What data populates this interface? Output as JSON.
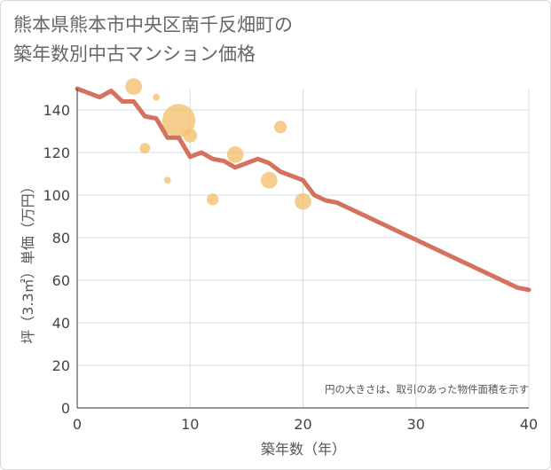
{
  "chart_data": {
    "type": "scatter",
    "title": "熊本県熊本市中央区南千反畑町の\n築年数別中古マンション価格",
    "xlabel": "築年数（年）",
    "ylabel": "坪（3.3㎡）単価（万円）",
    "note": "円の大きさは、取引のあった物件面積を示す",
    "xlim": [
      0,
      40
    ],
    "ylim": [
      0,
      150
    ],
    "xticks": [
      0,
      10,
      20,
      30,
      40
    ],
    "yticks": [
      0,
      20,
      40,
      60,
      80,
      100,
      120,
      140
    ],
    "grid": true,
    "colors": {
      "line": "#d4725f",
      "bubble": "#f3c271"
    },
    "series": [
      {
        "name": "transactions",
        "kind": "bubble",
        "points": [
          {
            "x": 5,
            "y": 151,
            "size": 3.5
          },
          {
            "x": 7,
            "y": 146,
            "size": 0.6
          },
          {
            "x": 6,
            "y": 122,
            "size": 1.4
          },
          {
            "x": 8,
            "y": 107,
            "size": 0.6
          },
          {
            "x": 9,
            "y": 135,
            "size": 14
          },
          {
            "x": 10,
            "y": 128,
            "size": 2.5
          },
          {
            "x": 12,
            "y": 98,
            "size": 1.8
          },
          {
            "x": 14,
            "y": 119,
            "size": 3.5
          },
          {
            "x": 17,
            "y": 107,
            "size": 3.5
          },
          {
            "x": 18,
            "y": 132,
            "size": 2
          },
          {
            "x": 20,
            "y": 97,
            "size": 3.5
          }
        ]
      },
      {
        "name": "trend",
        "kind": "line",
        "x": [
          0,
          1,
          2,
          3,
          4,
          5,
          6,
          7,
          8,
          9,
          10,
          11,
          12,
          13,
          14,
          15,
          16,
          17,
          18,
          19,
          20,
          21,
          22,
          23,
          24,
          25,
          26,
          27,
          28,
          29,
          30,
          31,
          32,
          33,
          34,
          35,
          36,
          37,
          38,
          39,
          40
        ],
        "y": [
          150,
          148,
          146,
          149,
          144,
          144,
          137,
          136,
          127,
          127,
          118,
          120,
          117,
          116,
          113,
          115,
          117,
          115,
          111,
          109,
          107,
          100,
          97.5,
          96.5,
          94,
          91.5,
          89,
          86.5,
          84,
          81.5,
          79,
          76.5,
          74,
          71.5,
          69,
          66.5,
          64,
          61.5,
          59,
          56.5,
          55.5
        ]
      }
    ]
  }
}
